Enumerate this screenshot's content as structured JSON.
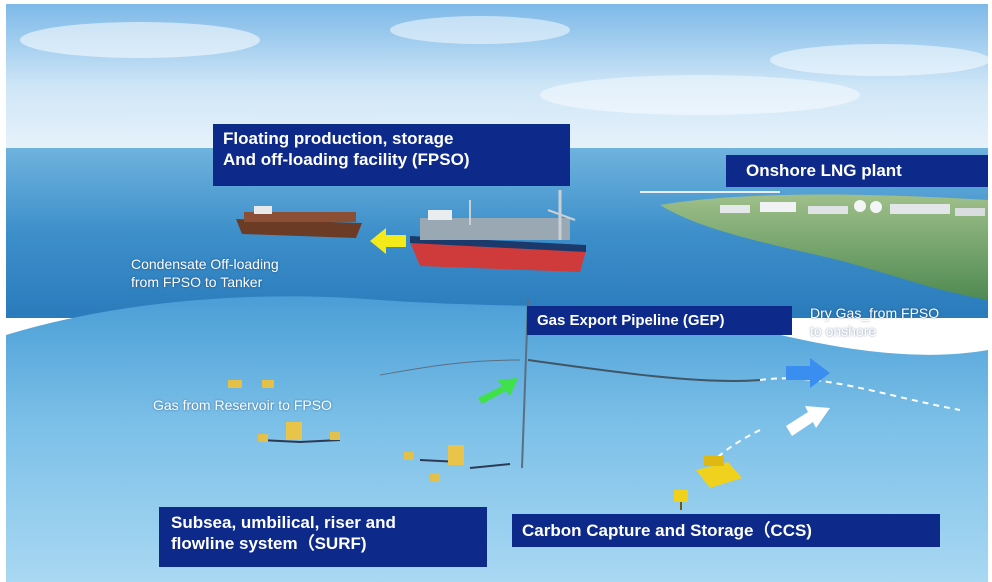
{
  "labels": {
    "fpso_line1": "Floating production, storage",
    "fpso_line2": "And off-loading facility (FPSO)",
    "onshore_lng": "Onshore LNG plant",
    "gep": "Gas Export Pipeline (GEP)",
    "surf_line1": "Subsea, umbilical, riser and",
    "surf_line2": "flowline system（SURF)",
    "ccs": "Carbon Capture and Storage（CCS)"
  },
  "captions": {
    "condensate_line1": "Condensate Off-loading",
    "condensate_line2": "from FPSO to Tanker",
    "dry_gas_line1": "Dry Gas_from FPSO",
    "dry_gas_line2": "to onshore",
    "gas_reservoir": "Gas from Reservoir to FPSO"
  },
  "colors": {
    "label_box": "#0d2a8a",
    "condensate_arrow": "#f4ea1a",
    "gas_arrow": "#3fe04a",
    "dry_gas_arrow": "#3a8ef0",
    "ccs_arrow": "#ffffff",
    "sky": "#cfe6f7",
    "sea_surface": "#5aa9d8",
    "underwater": "#7cc0e8"
  },
  "icons": {
    "tanker": "tanker-ship-icon",
    "fpso": "fpso-vessel-icon",
    "lng_plant": "lng-plant-icon",
    "ccs_unit": "ccs-module-icon",
    "subsea": "subsea-manifold-icon"
  }
}
